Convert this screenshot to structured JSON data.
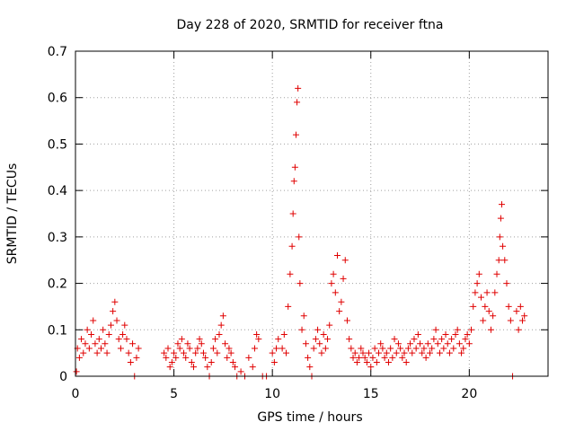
{
  "chart_data": {
    "type": "scatter",
    "title": "Day 228 of 2020, SRMTID for receiver ftna",
    "xlabel": "GPS time / hours",
    "ylabel": "SRMTID / TECUs",
    "xlim": [
      0,
      24
    ],
    "ylim": [
      0,
      0.7
    ],
    "xticks": [
      0,
      5,
      10,
      15,
      20
    ],
    "yticks": [
      0,
      0.1,
      0.2,
      0.3,
      0.4,
      0.5,
      0.6,
      0.7
    ],
    "xtick_labels": [
      "0",
      "5",
      "10",
      "15",
      "20"
    ],
    "ytick_labels": [
      "0",
      "0.1",
      "0.2",
      "0.3",
      "0.4",
      "0.5",
      "0.6",
      "0.7"
    ],
    "grid": true,
    "marker": "+",
    "color": "#e00000",
    "series": [
      {
        "name": "SRMTID",
        "points": [
          [
            0.05,
            0.01
          ],
          [
            0.1,
            0.06
          ],
          [
            0.2,
            0.04
          ],
          [
            0.3,
            0.08
          ],
          [
            0.4,
            0.05
          ],
          [
            0.5,
            0.07
          ],
          [
            0.6,
            0.1
          ],
          [
            0.7,
            0.06
          ],
          [
            0.8,
            0.09
          ],
          [
            0.9,
            0.12
          ],
          [
            1.0,
            0.07
          ],
          [
            1.1,
            0.05
          ],
          [
            1.2,
            0.08
          ],
          [
            1.3,
            0.06
          ],
          [
            1.4,
            0.1
          ],
          [
            1.5,
            0.07
          ],
          [
            1.6,
            0.05
          ],
          [
            1.7,
            0.09
          ],
          [
            1.8,
            0.11
          ],
          [
            1.9,
            0.14
          ],
          [
            2.0,
            0.16
          ],
          [
            2.1,
            0.12
          ],
          [
            2.2,
            0.08
          ],
          [
            2.3,
            0.06
          ],
          [
            2.4,
            0.09
          ],
          [
            2.5,
            0.11
          ],
          [
            2.6,
            0.08
          ],
          [
            2.7,
            0.05
          ],
          [
            2.8,
            0.03
          ],
          [
            2.9,
            0.07
          ],
          [
            3.0,
            0.0
          ],
          [
            3.1,
            0.04
          ],
          [
            3.2,
            0.06
          ],
          [
            4.5,
            0.05
          ],
          [
            4.6,
            0.04
          ],
          [
            4.7,
            0.06
          ],
          [
            4.8,
            0.02
          ],
          [
            4.9,
            0.03
          ],
          [
            5.0,
            0.05
          ],
          [
            5.1,
            0.04
          ],
          [
            5.2,
            0.07
          ],
          [
            5.3,
            0.06
          ],
          [
            5.4,
            0.08
          ],
          [
            5.5,
            0.05
          ],
          [
            5.6,
            0.04
          ],
          [
            5.7,
            0.07
          ],
          [
            5.8,
            0.06
          ],
          [
            5.9,
            0.03
          ],
          [
            6.0,
            0.02
          ],
          [
            6.1,
            0.05
          ],
          [
            6.2,
            0.06
          ],
          [
            6.3,
            0.08
          ],
          [
            6.4,
            0.07
          ],
          [
            6.5,
            0.05
          ],
          [
            6.6,
            0.04
          ],
          [
            6.7,
            0.02
          ],
          [
            6.8,
            0.0
          ],
          [
            6.9,
            0.03
          ],
          [
            7.0,
            0.06
          ],
          [
            7.1,
            0.08
          ],
          [
            7.2,
            0.05
          ],
          [
            7.3,
            0.09
          ],
          [
            7.4,
            0.11
          ],
          [
            7.5,
            0.13
          ],
          [
            7.6,
            0.07
          ],
          [
            7.7,
            0.04
          ],
          [
            7.8,
            0.06
          ],
          [
            7.9,
            0.05
          ],
          [
            8.0,
            0.03
          ],
          [
            8.1,
            0.02
          ],
          [
            8.2,
            0.0
          ],
          [
            8.4,
            0.01
          ],
          [
            8.6,
            0.0
          ],
          [
            8.8,
            0.04
          ],
          [
            9.0,
            0.02
          ],
          [
            9.1,
            0.06
          ],
          [
            9.2,
            0.09
          ],
          [
            9.3,
            0.08
          ],
          [
            9.5,
            0.0
          ],
          [
            9.7,
            0.0
          ],
          [
            10.0,
            0.05
          ],
          [
            10.1,
            0.03
          ],
          [
            10.2,
            0.06
          ],
          [
            10.3,
            0.08
          ],
          [
            10.5,
            0.06
          ],
          [
            10.6,
            0.09
          ],
          [
            10.7,
            0.05
          ],
          [
            10.8,
            0.15
          ],
          [
            10.9,
            0.22
          ],
          [
            11.0,
            0.28
          ],
          [
            11.05,
            0.35
          ],
          [
            11.1,
            0.42
          ],
          [
            11.15,
            0.45
          ],
          [
            11.2,
            0.52
          ],
          [
            11.25,
            0.59
          ],
          [
            11.3,
            0.62
          ],
          [
            11.35,
            0.3
          ],
          [
            11.4,
            0.2
          ],
          [
            11.5,
            0.1
          ],
          [
            11.6,
            0.13
          ],
          [
            11.7,
            0.07
          ],
          [
            11.8,
            0.04
          ],
          [
            11.9,
            0.02
          ],
          [
            12.0,
            0.0
          ],
          [
            12.1,
            0.06
          ],
          [
            12.2,
            0.08
          ],
          [
            12.3,
            0.1
          ],
          [
            12.4,
            0.07
          ],
          [
            12.5,
            0.05
          ],
          [
            12.6,
            0.09
          ],
          [
            12.7,
            0.06
          ],
          [
            12.8,
            0.08
          ],
          [
            12.9,
            0.11
          ],
          [
            13.0,
            0.2
          ],
          [
            13.1,
            0.22
          ],
          [
            13.2,
            0.18
          ],
          [
            13.3,
            0.26
          ],
          [
            13.4,
            0.14
          ],
          [
            13.5,
            0.16
          ],
          [
            13.6,
            0.21
          ],
          [
            13.7,
            0.25
          ],
          [
            13.8,
            0.12
          ],
          [
            13.9,
            0.08
          ],
          [
            14.0,
            0.06
          ],
          [
            14.1,
            0.04
          ],
          [
            14.2,
            0.05
          ],
          [
            14.3,
            0.03
          ],
          [
            14.4,
            0.04
          ],
          [
            14.5,
            0.06
          ],
          [
            14.6,
            0.05
          ],
          [
            14.7,
            0.04
          ],
          [
            14.8,
            0.03
          ],
          [
            14.9,
            0.05
          ],
          [
            15.0,
            0.02
          ],
          [
            15.1,
            0.04
          ],
          [
            15.2,
            0.06
          ],
          [
            15.3,
            0.03
          ],
          [
            15.4,
            0.05
          ],
          [
            15.5,
            0.07
          ],
          [
            15.6,
            0.06
          ],
          [
            15.7,
            0.04
          ],
          [
            15.8,
            0.05
          ],
          [
            15.9,
            0.03
          ],
          [
            16.0,
            0.06
          ],
          [
            16.1,
            0.04
          ],
          [
            16.2,
            0.08
          ],
          [
            16.3,
            0.05
          ],
          [
            16.4,
            0.07
          ],
          [
            16.5,
            0.06
          ],
          [
            16.6,
            0.04
          ],
          [
            16.7,
            0.05
          ],
          [
            16.8,
            0.03
          ],
          [
            16.9,
            0.06
          ],
          [
            17.0,
            0.07
          ],
          [
            17.1,
            0.05
          ],
          [
            17.2,
            0.08
          ],
          [
            17.3,
            0.06
          ],
          [
            17.4,
            0.09
          ],
          [
            17.5,
            0.07
          ],
          [
            17.6,
            0.05
          ],
          [
            17.7,
            0.06
          ],
          [
            17.8,
            0.04
          ],
          [
            17.9,
            0.07
          ],
          [
            18.0,
            0.05
          ],
          [
            18.1,
            0.06
          ],
          [
            18.2,
            0.08
          ],
          [
            18.3,
            0.1
          ],
          [
            18.4,
            0.07
          ],
          [
            18.5,
            0.05
          ],
          [
            18.6,
            0.08
          ],
          [
            18.7,
            0.06
          ],
          [
            18.8,
            0.09
          ],
          [
            18.9,
            0.07
          ],
          [
            19.0,
            0.05
          ],
          [
            19.1,
            0.08
          ],
          [
            19.2,
            0.06
          ],
          [
            19.3,
            0.09
          ],
          [
            19.4,
            0.1
          ],
          [
            19.5,
            0.07
          ],
          [
            19.6,
            0.05
          ],
          [
            19.7,
            0.06
          ],
          [
            19.8,
            0.08
          ],
          [
            19.9,
            0.09
          ],
          [
            20.0,
            0.07
          ],
          [
            20.1,
            0.1
          ],
          [
            20.2,
            0.15
          ],
          [
            20.3,
            0.18
          ],
          [
            20.4,
            0.2
          ],
          [
            20.5,
            0.22
          ],
          [
            20.6,
            0.17
          ],
          [
            20.7,
            0.12
          ],
          [
            20.8,
            0.15
          ],
          [
            20.9,
            0.18
          ],
          [
            21.0,
            0.14
          ],
          [
            21.1,
            0.1
          ],
          [
            21.2,
            0.13
          ],
          [
            21.3,
            0.18
          ],
          [
            21.4,
            0.22
          ],
          [
            21.5,
            0.25
          ],
          [
            21.55,
            0.3
          ],
          [
            21.6,
            0.34
          ],
          [
            21.65,
            0.37
          ],
          [
            21.7,
            0.28
          ],
          [
            21.8,
            0.25
          ],
          [
            21.9,
            0.2
          ],
          [
            22.0,
            0.15
          ],
          [
            22.1,
            0.12
          ],
          [
            22.2,
            0.0
          ],
          [
            22.4,
            0.14
          ],
          [
            22.5,
            0.1
          ],
          [
            22.6,
            0.15
          ],
          [
            22.7,
            0.12
          ],
          [
            22.8,
            0.13
          ]
        ]
      }
    ]
  }
}
